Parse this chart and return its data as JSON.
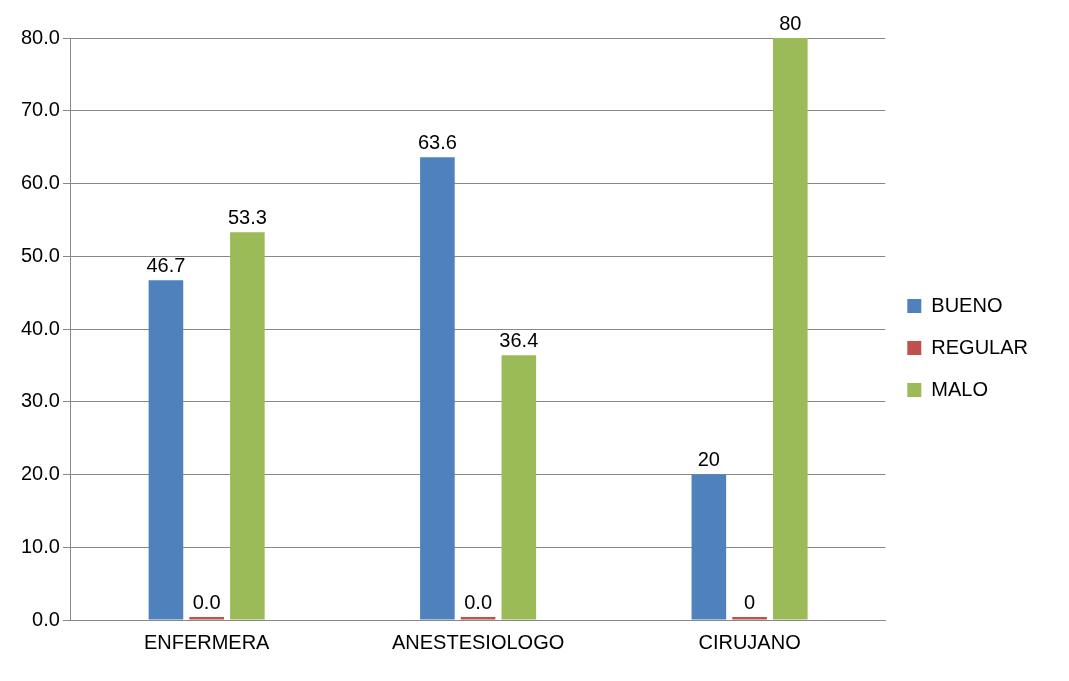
{
  "chart_data": {
    "type": "bar",
    "categories": [
      "ENFERMERA",
      "ANESTESIOLOGO",
      "CIRUJANO"
    ],
    "series": [
      {
        "name": "BUENO",
        "color": "#4f81bd",
        "values": [
          46.7,
          63.6,
          20
        ],
        "value_labels": [
          "46.7",
          "63.6",
          "20"
        ]
      },
      {
        "name": "REGULAR",
        "color": "#c0504d",
        "values": [
          0,
          0,
          0
        ],
        "value_labels": [
          "0.0",
          "0.0",
          "0"
        ]
      },
      {
        "name": "MALO",
        "color": "#9bbb59",
        "values": [
          53.3,
          36.4,
          80
        ],
        "value_labels": [
          "53.3",
          "36.4",
          "80"
        ]
      }
    ],
    "ylim": [
      0,
      80
    ],
    "yticks": [
      {
        "value": 0,
        "label": "0.0"
      },
      {
        "value": 10,
        "label": "10.0"
      },
      {
        "value": 20,
        "label": "20.0"
      },
      {
        "value": 30,
        "label": "30.0"
      },
      {
        "value": 40,
        "label": "40.0"
      },
      {
        "value": 50,
        "label": "50.0"
      },
      {
        "value": 60,
        "label": "60.0"
      },
      {
        "value": 70,
        "label": "70.0"
      },
      {
        "value": 80,
        "label": "80.0"
      }
    ],
    "grid": "y",
    "legend": "right"
  }
}
